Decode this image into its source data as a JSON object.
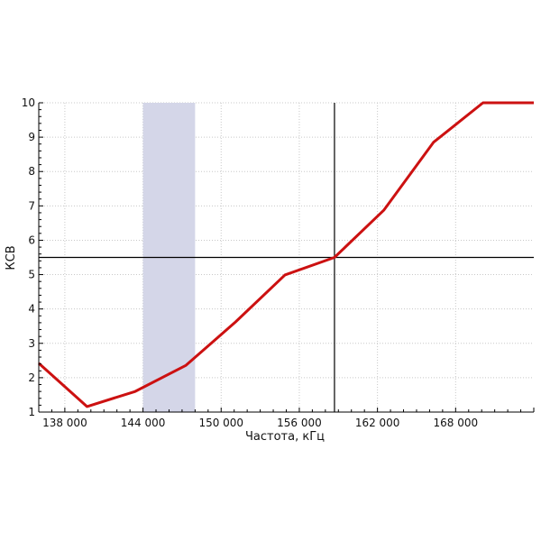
{
  "chart_data": {
    "type": "line",
    "xlabel": "Частота, кГц",
    "ylabel": "КСВ",
    "xlim": [
      136000,
      174000
    ],
    "ylim": [
      1,
      10
    ],
    "x_ticks": [
      138000,
      144000,
      150000,
      156000,
      162000,
      168000
    ],
    "x_tick_labels": [
      "138 000",
      "144 000",
      "150 000",
      "156 000",
      "162 000",
      "168 000"
    ],
    "y_ticks": [
      1,
      2,
      3,
      4,
      5,
      6,
      7,
      8,
      9,
      10
    ],
    "y_tick_labels": [
      "1",
      "2",
      "3",
      "4",
      "5",
      "6",
      "7",
      "8",
      "9",
      "10"
    ],
    "grid": true,
    "series": [
      {
        "color": "#cc1111",
        "x": [
          136000,
          139700,
          143400,
          147300,
          151100,
          154900,
          158700,
          162500,
          166300,
          170100,
          174000
        ],
        "y": [
          2.42,
          1.16,
          1.6,
          2.36,
          3.62,
          4.99,
          5.5,
          6.88,
          8.85,
          10,
          10
        ]
      }
    ],
    "highlight_band": {
      "x": [
        144000,
        148000
      ],
      "color": "#d4d6e8"
    },
    "crosshair": {
      "x": 158700,
      "y": 5.5,
      "color": "#000000"
    }
  }
}
